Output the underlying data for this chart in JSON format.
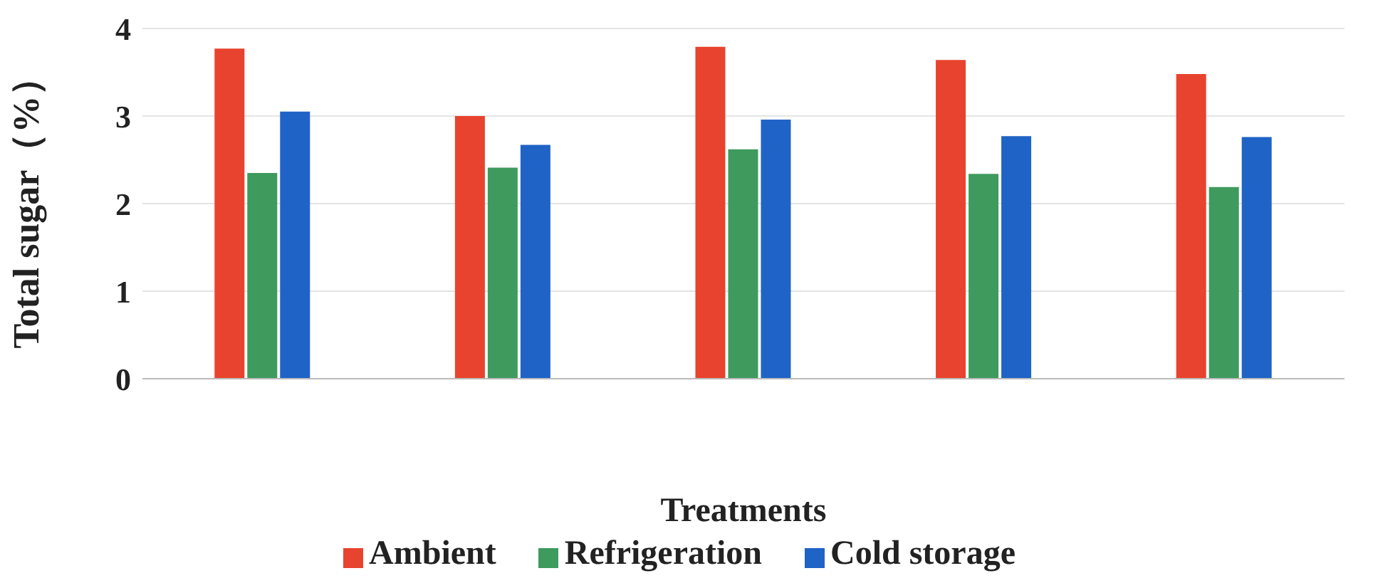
{
  "chart_data": {
    "type": "bar",
    "xlabel": "Treatments",
    "ylabel": "Total sugar（%）",
    "categories": [
      null,
      null,
      null,
      null,
      null
    ],
    "series": [
      {
        "name": "Ambient",
        "color": "#e8432e",
        "values": [
          3.77,
          3.0,
          3.79,
          3.64,
          3.48
        ]
      },
      {
        "name": "Refrigeration",
        "color": "#3f9a5e",
        "values": [
          2.35,
          2.41,
          2.62,
          2.34,
          2.19
        ]
      },
      {
        "name": "Cold storage",
        "color": "#1f63c6",
        "values": [
          3.05,
          2.67,
          2.96,
          2.77,
          2.76
        ]
      }
    ],
    "ylim": [
      0,
      4
    ],
    "yticks": [
      0,
      1,
      2,
      3,
      4
    ],
    "grid": "y",
    "legend": "bottom"
  }
}
